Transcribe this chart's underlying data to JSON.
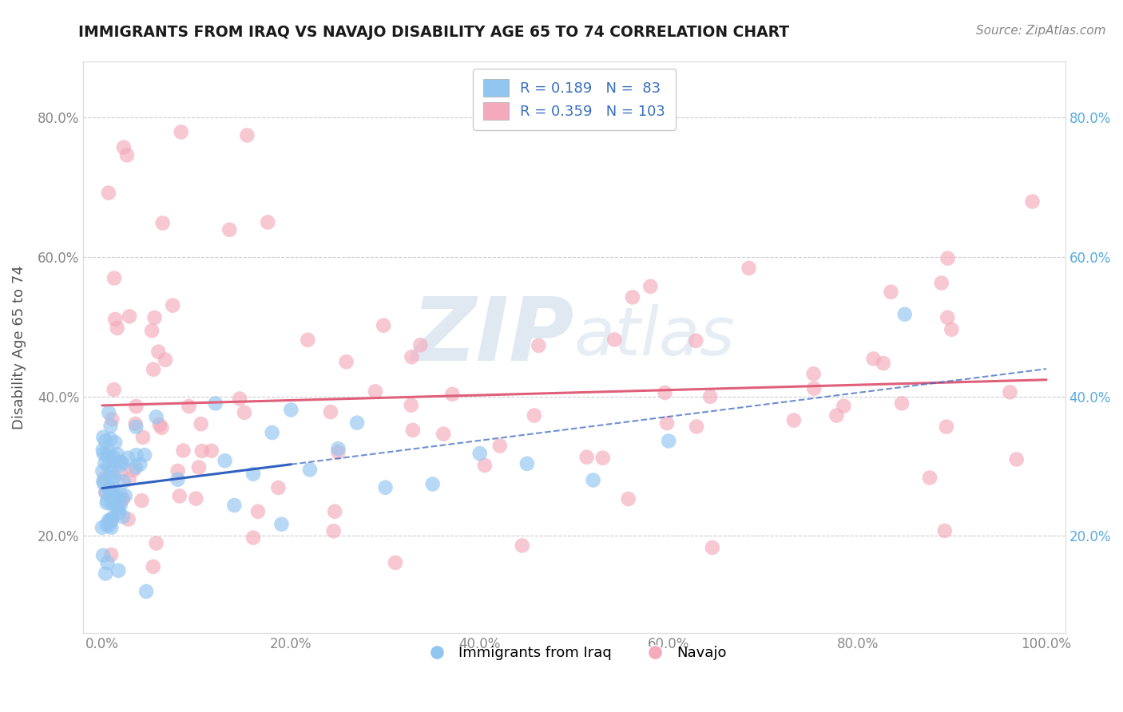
{
  "title": "IMMIGRANTS FROM IRAQ VS NAVAJO DISABILITY AGE 65 TO 74 CORRELATION CHART",
  "source_text": "Source: ZipAtlas.com",
  "ylabel": "Disability Age 65 to 74",
  "xlim": [
    -0.02,
    1.02
  ],
  "ylim": [
    0.06,
    0.88
  ],
  "xticks": [
    0.0,
    0.2,
    0.4,
    0.6,
    0.8,
    1.0
  ],
  "xticklabels": [
    "0.0%",
    "20.0%",
    "40.0%",
    "60.0%",
    "80.0%",
    "100.0%"
  ],
  "yticks": [
    0.2,
    0.4,
    0.6,
    0.8
  ],
  "yticklabels": [
    "20.0%",
    "40.0%",
    "60.0%",
    "80.0%"
  ],
  "legend_r1": "R = 0.189",
  "legend_n1": "N =  83",
  "legend_r2": "R = 0.359",
  "legend_n2": "N = 103",
  "blue_color": "#92C5F0",
  "pink_color": "#F4AABB",
  "trend_blue": "#3060C0",
  "trend_pink": "#E0607A",
  "grid_color": "#C8C8C8",
  "background_color": "#FFFFFF",
  "watermark_color": "#C8D8E8",
  "tick_color_left": "#888888",
  "tick_color_right": "#5AAAE0"
}
